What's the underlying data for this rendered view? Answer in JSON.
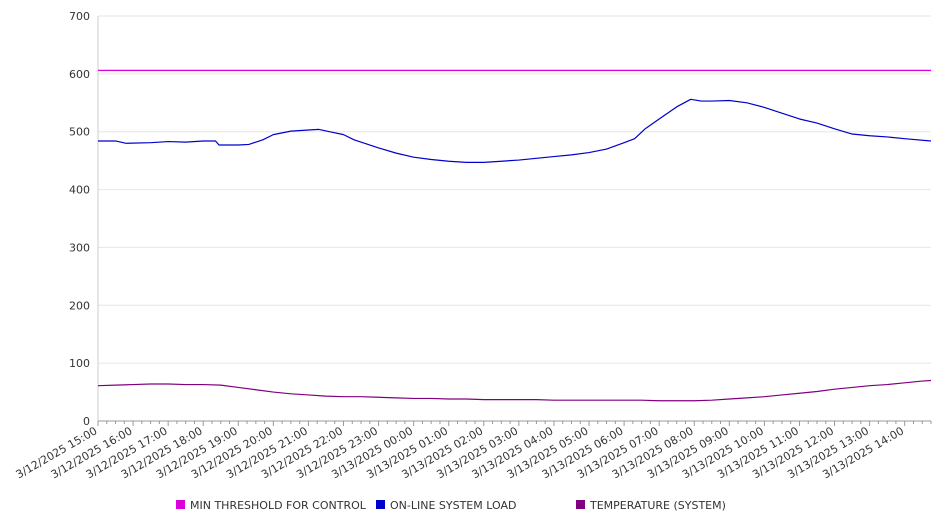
{
  "chart_data": {
    "type": "line",
    "title": "",
    "xlabel": "",
    "ylabel": "",
    "ylim": [
      0,
      700
    ],
    "yticks": [
      "0",
      "100",
      "200",
      "300",
      "400",
      "500",
      "600",
      "700"
    ],
    "grid": true,
    "legend_position": "bottom",
    "categories": [
      "3/12/2025 15:00",
      "3/12/2025 16:00",
      "3/12/2025 17:00",
      "3/12/2025 18:00",
      "3/12/2025 19:00",
      "3/12/2025 20:00",
      "3/12/2025 21:00",
      "3/12/2025 22:00",
      "3/12/2025 23:00",
      "3/13/2025 00:00",
      "3/13/2025 01:00",
      "3/13/2025 02:00",
      "3/13/2025 03:00",
      "3/13/2025 04:00",
      "3/13/2025 05:00",
      "3/13/2025 06:00",
      "3/13/2025 07:00",
      "3/13/2025 08:00",
      "3/13/2025 09:00",
      "3/13/2025 10:00",
      "3/13/2025 11:00",
      "3/13/2025 12:00",
      "3/13/2025 13:00",
      "3/13/2025 14:00"
    ],
    "x_end_hours": 23.75,
    "series": [
      {
        "name": "MIN THRESHOLD FOR CONTROL",
        "color": "#dd00dd",
        "points": [
          [
            0,
            606
          ],
          [
            23.75,
            606
          ]
        ]
      },
      {
        "name": "ON-LINE SYSTEM LOAD",
        "color": "#0000cc",
        "points": [
          [
            0,
            484
          ],
          [
            0.5,
            484
          ],
          [
            0.8,
            480
          ],
          [
            1.5,
            481
          ],
          [
            2,
            483
          ],
          [
            2.5,
            482
          ],
          [
            3,
            484
          ],
          [
            3.35,
            484
          ],
          [
            3.45,
            477
          ],
          [
            4,
            477
          ],
          [
            4.3,
            478
          ],
          [
            4.7,
            486
          ],
          [
            5,
            495
          ],
          [
            5.5,
            501
          ],
          [
            6,
            503
          ],
          [
            6.3,
            504
          ],
          [
            6.6,
            500
          ],
          [
            7,
            495
          ],
          [
            7.3,
            486
          ],
          [
            7.7,
            478
          ],
          [
            8,
            472
          ],
          [
            8.5,
            463
          ],
          [
            9,
            456
          ],
          [
            9.5,
            452
          ],
          [
            10,
            449
          ],
          [
            10.5,
            447
          ],
          [
            11,
            447
          ],
          [
            11.5,
            449
          ],
          [
            12,
            451
          ],
          [
            12.5,
            454
          ],
          [
            13,
            457
          ],
          [
            13.5,
            460
          ],
          [
            14,
            464
          ],
          [
            14.5,
            470
          ],
          [
            15,
            481
          ],
          [
            15.3,
            488
          ],
          [
            15.6,
            505
          ],
          [
            16,
            522
          ],
          [
            16.5,
            543
          ],
          [
            16.9,
            556
          ],
          [
            17.2,
            553
          ],
          [
            17.5,
            553
          ],
          [
            18,
            554
          ],
          [
            18.5,
            550
          ],
          [
            19,
            542
          ],
          [
            19.5,
            532
          ],
          [
            20,
            522
          ],
          [
            20.5,
            515
          ],
          [
            21,
            505
          ],
          [
            21.5,
            496
          ],
          [
            22,
            493
          ],
          [
            22.5,
            491
          ],
          [
            23,
            488
          ],
          [
            23.75,
            484
          ]
        ]
      },
      {
        "name": "TEMPERATURE (SYSTEM)",
        "color": "#800080",
        "points": [
          [
            0,
            61
          ],
          [
            0.5,
            62
          ],
          [
            1,
            63
          ],
          [
            1.5,
            64
          ],
          [
            2,
            64
          ],
          [
            2.5,
            63
          ],
          [
            3,
            63
          ],
          [
            3.5,
            62
          ],
          [
            4,
            58
          ],
          [
            4.5,
            54
          ],
          [
            5,
            50
          ],
          [
            5.5,
            47
          ],
          [
            6,
            45
          ],
          [
            6.5,
            43
          ],
          [
            7,
            42
          ],
          [
            7.5,
            42
          ],
          [
            8,
            41
          ],
          [
            8.5,
            40
          ],
          [
            9,
            39
          ],
          [
            9.5,
            39
          ],
          [
            10,
            38
          ],
          [
            10.5,
            38
          ],
          [
            11,
            37
          ],
          [
            11.5,
            37
          ],
          [
            12,
            37
          ],
          [
            12.5,
            37
          ],
          [
            13,
            36
          ],
          [
            13.5,
            36
          ],
          [
            14,
            36
          ],
          [
            14.5,
            36
          ],
          [
            15,
            36
          ],
          [
            15.5,
            36
          ],
          [
            16,
            35
          ],
          [
            16.5,
            35
          ],
          [
            17,
            35
          ],
          [
            17.5,
            36
          ],
          [
            18,
            38
          ],
          [
            18.5,
            40
          ],
          [
            19,
            42
          ],
          [
            19.5,
            45
          ],
          [
            20,
            48
          ],
          [
            20.5,
            51
          ],
          [
            21,
            55
          ],
          [
            21.5,
            58
          ],
          [
            22,
            61
          ],
          [
            22.5,
            63
          ],
          [
            23,
            66
          ],
          [
            23.5,
            69
          ],
          [
            23.75,
            70
          ]
        ]
      }
    ]
  }
}
